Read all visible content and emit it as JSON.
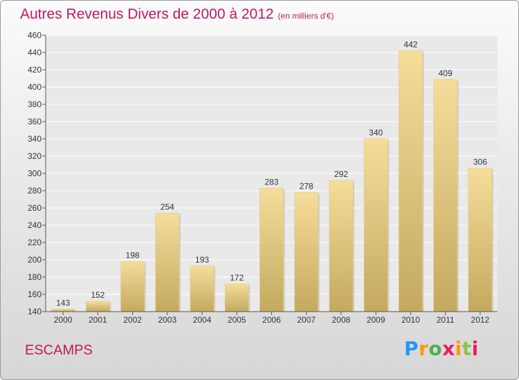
{
  "title": "Autres Revenus Divers de 2000 à 2012",
  "unit_note": "(en milliers d'€)",
  "commune": "ESCAMPS",
  "brand": {
    "letters": [
      "P",
      "r",
      "o",
      "x",
      "i",
      "t",
      "i"
    ],
    "colors": [
      "#2196f3",
      "#ff9800",
      "#4caf50",
      "#e91e63",
      "#ff9800",
      "#8bc34a",
      "#e91e63"
    ]
  },
  "chart_data": {
    "type": "bar",
    "title": "Autres Revenus Divers de 2000 à 2012",
    "subtitle": "(en milliers d'€)",
    "categories": [
      "2000",
      "2001",
      "2002",
      "2003",
      "2004",
      "2005",
      "2006",
      "2007",
      "2008",
      "2009",
      "2010",
      "2011",
      "2012"
    ],
    "values": [
      143,
      152,
      198,
      254,
      193,
      172,
      283,
      278,
      292,
      340,
      442,
      409,
      306
    ],
    "ylim": [
      140,
      460
    ],
    "yticks": [
      140,
      160,
      180,
      200,
      220,
      240,
      260,
      280,
      300,
      320,
      340,
      360,
      380,
      400,
      420,
      440,
      460
    ],
    "grid": true,
    "bar_color_top": "#f5dd9a",
    "bar_color_bottom": "#c4a95f"
  }
}
